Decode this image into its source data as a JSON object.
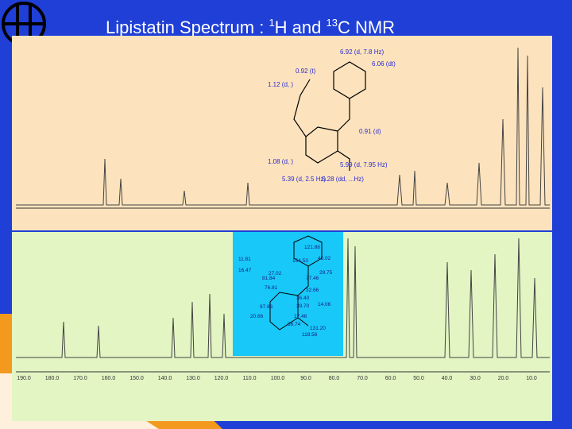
{
  "title": {
    "part1": "Lipistatin Spectrum : ",
    "sup1": "1",
    "part2": "H and ",
    "sup2": "13",
    "part3": "C NMR"
  },
  "h_nmr": {
    "annotations": [
      "6.92 (d, 7.8 Hz)",
      "6.06 (dt)",
      "0.92 (t)",
      "1.12 (d, )",
      "0.91 (d)",
      "1.08 (d, )",
      "5.99 (d, 7.95 Hz)",
      "5.39 (d, 2.5 Hz)",
      "5.28 (dd, ...Hz)"
    ]
  },
  "c_nmr": {
    "axis_labels": [
      "190.0",
      "180.0",
      "170.0",
      "160.0",
      "150.0",
      "140.0",
      "130.0",
      "120.0",
      "110.0",
      "100.0",
      "90.0",
      "80.0",
      "70.0",
      "60.0",
      "50.0",
      "40.0",
      "30.0",
      "20.0",
      "10.0"
    ],
    "annotations": [
      "121.88",
      "45.02",
      "164.53",
      "11.81",
      "29.75",
      "27.02",
      "16.47",
      "77.46",
      "81.84",
      "32.66",
      "76.81",
      "36.40",
      "39.70",
      "14.06",
      "97.86",
      "17.46",
      "20.66",
      "36.74",
      "131.20",
      "118.56"
    ]
  }
}
